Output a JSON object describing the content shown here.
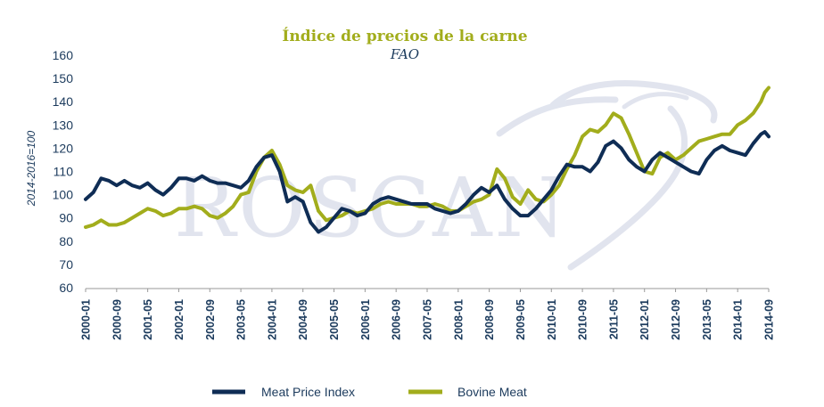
{
  "chart_data": {
    "type": "line",
    "title": "Índice de precios de la carne",
    "subtitle": "FAO",
    "ylabel": "2014-2016=100",
    "xlabel": "",
    "ylim": [
      60,
      160
    ],
    "yticks": [
      60,
      70,
      80,
      90,
      100,
      110,
      120,
      130,
      140,
      150,
      160
    ],
    "xlim": [
      "2000-01",
      "2014-09"
    ],
    "xtick_labels": [
      "2000-01",
      "2000-09",
      "2001-05",
      "2002-01",
      "2002-09",
      "2003-05",
      "2004-01",
      "2004-09",
      "2005-05",
      "2006-01",
      "2006-09",
      "2007-05",
      "2008-01",
      "2008-09",
      "2009-05",
      "2010-01",
      "2010-09",
      "2011-05",
      "2012-01",
      "2012-09",
      "2013-05",
      "2014-01",
      "2014-09"
    ],
    "grid": false,
    "legend_position": "bottom",
    "watermark": "ROSCAN",
    "colors": {
      "title": "#a2ad1c",
      "subtitle": "#1b3a5c",
      "axis": "#999999",
      "text": "#1b3a5c",
      "watermark": "#c9cfe1"
    },
    "series": [
      {
        "name": "Meat Price Index",
        "color": "#0f2d55",
        "points": [
          [
            "2000-01",
            98
          ],
          [
            "2000-03",
            101
          ],
          [
            "2000-05",
            107
          ],
          [
            "2000-07",
            106
          ],
          [
            "2000-09",
            104
          ],
          [
            "2000-11",
            106
          ],
          [
            "2001-01",
            104
          ],
          [
            "2001-03",
            103
          ],
          [
            "2001-05",
            105
          ],
          [
            "2001-07",
            102
          ],
          [
            "2001-09",
            100
          ],
          [
            "2001-11",
            103
          ],
          [
            "2002-01",
            107
          ],
          [
            "2002-03",
            107
          ],
          [
            "2002-05",
            106
          ],
          [
            "2002-07",
            108
          ],
          [
            "2002-09",
            106
          ],
          [
            "2002-11",
            105
          ],
          [
            "2003-01",
            105
          ],
          [
            "2003-03",
            104
          ],
          [
            "2003-05",
            103
          ],
          [
            "2003-07",
            106
          ],
          [
            "2003-09",
            112
          ],
          [
            "2003-11",
            116
          ],
          [
            "2004-01",
            117
          ],
          [
            "2004-03",
            110
          ],
          [
            "2004-05",
            97
          ],
          [
            "2004-07",
            99
          ],
          [
            "2004-09",
            97
          ],
          [
            "2004-11",
            88
          ],
          [
            "2005-01",
            84
          ],
          [
            "2005-03",
            86
          ],
          [
            "2005-05",
            90
          ],
          [
            "2005-07",
            94
          ],
          [
            "2005-09",
            93
          ],
          [
            "2005-11",
            91
          ],
          [
            "2006-01",
            92
          ],
          [
            "2006-03",
            96
          ],
          [
            "2006-05",
            98
          ],
          [
            "2006-07",
            99
          ],
          [
            "2006-09",
            98
          ],
          [
            "2006-11",
            97
          ],
          [
            "2007-01",
            96
          ],
          [
            "2007-03",
            96
          ],
          [
            "2007-05",
            96
          ],
          [
            "2007-07",
            94
          ],
          [
            "2007-09",
            93
          ],
          [
            "2007-11",
            92
          ],
          [
            "2008-01",
            93
          ],
          [
            "2008-03",
            96
          ],
          [
            "2008-05",
            100
          ],
          [
            "2008-07",
            103
          ],
          [
            "2008-09",
            101
          ],
          [
            "2008-11",
            104
          ],
          [
            "2009-01",
            98
          ],
          [
            "2009-03",
            94
          ],
          [
            "2009-05",
            91
          ],
          [
            "2009-07",
            91
          ],
          [
            "2009-09",
            94
          ],
          [
            "2009-11",
            98
          ],
          [
            "2010-01",
            102
          ],
          [
            "2010-03",
            108
          ],
          [
            "2010-05",
            113
          ],
          [
            "2010-07",
            112
          ],
          [
            "2010-09",
            112
          ],
          [
            "2010-11",
            110
          ],
          [
            "2011-01",
            114
          ],
          [
            "2011-03",
            121
          ],
          [
            "2011-05",
            123
          ],
          [
            "2011-07",
            120
          ],
          [
            "2011-09",
            115
          ],
          [
            "2011-11",
            112
          ],
          [
            "2012-01",
            110
          ],
          [
            "2012-03",
            115
          ],
          [
            "2012-05",
            118
          ],
          [
            "2012-07",
            116
          ],
          [
            "2012-09",
            114
          ],
          [
            "2012-11",
            112
          ],
          [
            "2013-01",
            110
          ],
          [
            "2013-03",
            109
          ],
          [
            "2013-05",
            115
          ],
          [
            "2013-07",
            119
          ],
          [
            "2013-09",
            121
          ],
          [
            "2013-11",
            119
          ],
          [
            "2014-01",
            118
          ],
          [
            "2014-03",
            117
          ],
          [
            "2014-05",
            122
          ],
          [
            "2014-07",
            126
          ],
          [
            "2014-08",
            127
          ],
          [
            "2014-09",
            125
          ]
        ]
      },
      {
        "name": "Bovine Meat",
        "color": "#a2ad1c",
        "points": [
          [
            "2000-01",
            86
          ],
          [
            "2000-03",
            87
          ],
          [
            "2000-05",
            89
          ],
          [
            "2000-07",
            87
          ],
          [
            "2000-09",
            87
          ],
          [
            "2000-11",
            88
          ],
          [
            "2001-01",
            90
          ],
          [
            "2001-03",
            92
          ],
          [
            "2001-05",
            94
          ],
          [
            "2001-07",
            93
          ],
          [
            "2001-09",
            91
          ],
          [
            "2001-11",
            92
          ],
          [
            "2002-01",
            94
          ],
          [
            "2002-03",
            94
          ],
          [
            "2002-05",
            95
          ],
          [
            "2002-07",
            94
          ],
          [
            "2002-09",
            91
          ],
          [
            "2002-11",
            90
          ],
          [
            "2003-01",
            92
          ],
          [
            "2003-03",
            95
          ],
          [
            "2003-05",
            100
          ],
          [
            "2003-07",
            101
          ],
          [
            "2003-09",
            110
          ],
          [
            "2003-11",
            116
          ],
          [
            "2004-01",
            119
          ],
          [
            "2004-03",
            113
          ],
          [
            "2004-05",
            104
          ],
          [
            "2004-07",
            102
          ],
          [
            "2004-09",
            101
          ],
          [
            "2004-11",
            104
          ],
          [
            "2005-01",
            93
          ],
          [
            "2005-03",
            89
          ],
          [
            "2005-05",
            90
          ],
          [
            "2005-07",
            91
          ],
          [
            "2005-09",
            93
          ],
          [
            "2005-11",
            92
          ],
          [
            "2006-01",
            93
          ],
          [
            "2006-03",
            94
          ],
          [
            "2006-05",
            96
          ],
          [
            "2006-07",
            97
          ],
          [
            "2006-09",
            96
          ],
          [
            "2006-11",
            96
          ],
          [
            "2007-01",
            96
          ],
          [
            "2007-03",
            95
          ],
          [
            "2007-05",
            95
          ],
          [
            "2007-07",
            96
          ],
          [
            "2007-09",
            95
          ],
          [
            "2007-11",
            93
          ],
          [
            "2008-01",
            93
          ],
          [
            "2008-03",
            95
          ],
          [
            "2008-05",
            97
          ],
          [
            "2008-07",
            98
          ],
          [
            "2008-09",
            100
          ],
          [
            "2008-11",
            111
          ],
          [
            "2009-01",
            107
          ],
          [
            "2009-03",
            99
          ],
          [
            "2009-05",
            96
          ],
          [
            "2009-07",
            102
          ],
          [
            "2009-09",
            98
          ],
          [
            "2009-11",
            97
          ],
          [
            "2010-01",
            100
          ],
          [
            "2010-03",
            104
          ],
          [
            "2010-05",
            111
          ],
          [
            "2010-07",
            117
          ],
          [
            "2010-09",
            125
          ],
          [
            "2010-11",
            128
          ],
          [
            "2011-01",
            127
          ],
          [
            "2011-03",
            130
          ],
          [
            "2011-05",
            135
          ],
          [
            "2011-07",
            133
          ],
          [
            "2011-09",
            126
          ],
          [
            "2011-11",
            118
          ],
          [
            "2012-01",
            110
          ],
          [
            "2012-03",
            109
          ],
          [
            "2012-05",
            116
          ],
          [
            "2012-07",
            118
          ],
          [
            "2012-09",
            115
          ],
          [
            "2012-11",
            117
          ],
          [
            "2013-01",
            120
          ],
          [
            "2013-03",
            123
          ],
          [
            "2013-05",
            124
          ],
          [
            "2013-07",
            125
          ],
          [
            "2013-09",
            126
          ],
          [
            "2013-11",
            126
          ],
          [
            "2014-01",
            130
          ],
          [
            "2014-03",
            132
          ],
          [
            "2014-05",
            135
          ],
          [
            "2014-07",
            140
          ],
          [
            "2014-08",
            144
          ],
          [
            "2014-09",
            146
          ]
        ]
      }
    ]
  }
}
